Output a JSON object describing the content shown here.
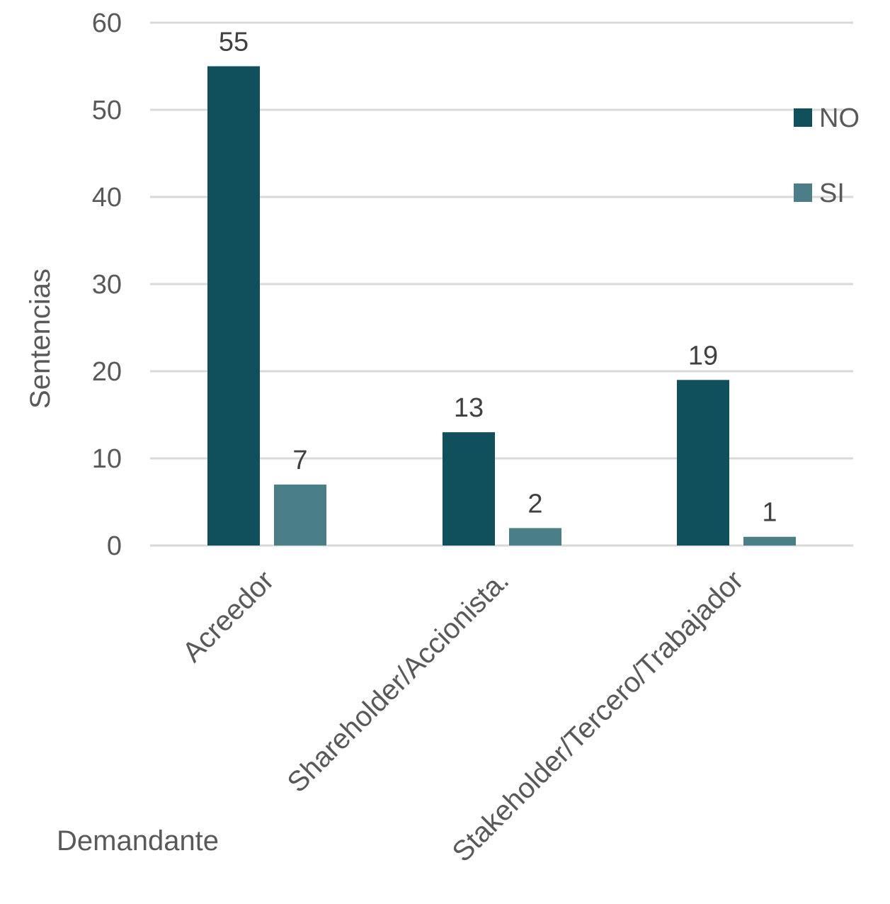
{
  "chart_data": {
    "type": "bar",
    "categories": [
      "Acreedor",
      "Shareholder/Accionista.",
      "Stakeholder/Tercero/Trabajador"
    ],
    "series": [
      {
        "name": "NO",
        "values": [
          55,
          13,
          19
        ],
        "color": "#0f505c"
      },
      {
        "name": "SI",
        "values": [
          7,
          2,
          1
        ],
        "color": "#4a7f87"
      }
    ],
    "title": "",
    "xlabel": "Demandante",
    "ylabel": "Sentencias",
    "ylim": [
      0,
      60
    ],
    "yticks": [
      0,
      10,
      20,
      30,
      40,
      50,
      60
    ],
    "grid": true,
    "legend_position": "right",
    "data_labels": true
  }
}
